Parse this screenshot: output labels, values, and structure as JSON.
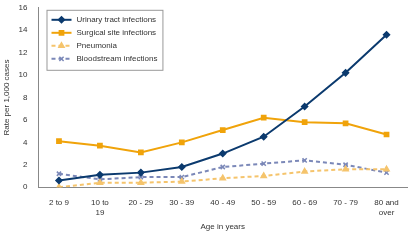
{
  "chart_data": {
    "type": "line",
    "x_label": "Age in years",
    "y_label": "Rate per 1,000 cases",
    "categories": [
      "2 to 9",
      "10 to 19",
      "20 - 29",
      "30 - 39",
      "40 - 49",
      "50 - 59",
      "60 - 69",
      "70 - 79",
      "80 and over"
    ],
    "series": [
      {
        "name": "Urinary tract infections",
        "color": "#0b3a6e",
        "marker": "diamond",
        "line_style": "solid",
        "values": [
          0.6,
          1.1,
          1.3,
          1.8,
          3.0,
          4.5,
          7.2,
          10.2,
          13.6
        ]
      },
      {
        "name": "Surgical site infections",
        "color": "#f0a30a",
        "marker": "square",
        "line_style": "solid",
        "values": [
          4.1,
          3.7,
          3.1,
          4.0,
          5.1,
          6.2,
          5.8,
          5.7,
          4.7
        ]
      },
      {
        "name": "Pneumonia",
        "color": "#f5c46c",
        "marker": "triangle",
        "line_style": "dashed",
        "values": [
          0.0,
          0.4,
          0.4,
          0.5,
          0.8,
          1.0,
          1.4,
          1.6,
          1.6
        ]
      },
      {
        "name": "Bloodstream infections",
        "color": "#7b88b8",
        "marker": "x",
        "line_style": "dashed",
        "values": [
          1.2,
          0.7,
          0.9,
          0.9,
          1.8,
          2.1,
          2.4,
          2.0,
          1.3
        ]
      }
    ],
    "ylim": [
      0,
      16
    ],
    "yticks": [
      0,
      2,
      4,
      6,
      8,
      10,
      12,
      14,
      16
    ],
    "grid": false,
    "legend": "upper left"
  }
}
